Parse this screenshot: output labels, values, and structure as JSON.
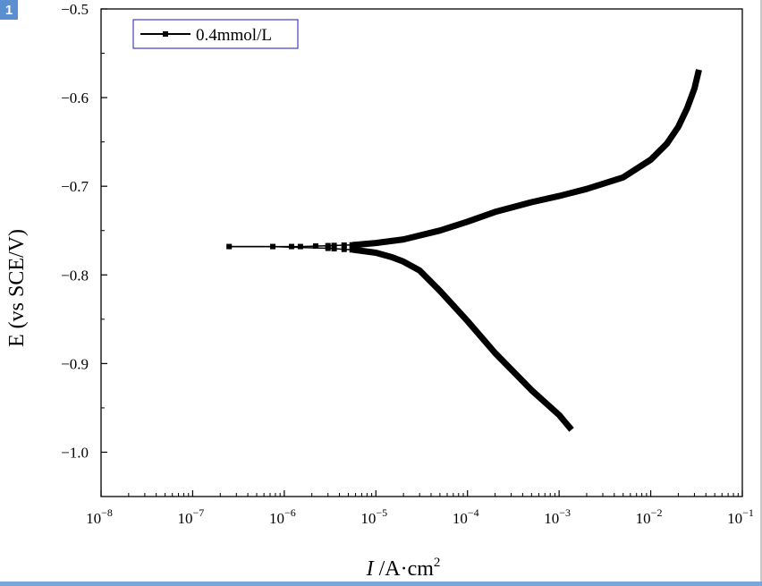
{
  "figure": {
    "badge": "1"
  },
  "chart_data": {
    "type": "line",
    "xlabel": {
      "italic": "I",
      "unit": " /A·cm",
      "sup": "2"
    },
    "ylabel": "E (vs SCE/V)",
    "xscale": "log",
    "xlim": [
      1e-08,
      0.1
    ],
    "ylim": [
      -1.05,
      -0.5
    ],
    "x_tick_labels": [
      {
        "base": "10",
        "exp": "−8"
      },
      {
        "base": "10",
        "exp": "−7"
      },
      {
        "base": "10",
        "exp": "−6"
      },
      {
        "base": "10",
        "exp": "−5"
      },
      {
        "base": "10",
        "exp": "−4"
      },
      {
        "base": "10",
        "exp": "−3"
      },
      {
        "base": "10",
        "exp": "−2"
      },
      {
        "base": "10",
        "exp": "−1"
      }
    ],
    "y_ticks": [
      -0.5,
      -0.6,
      -0.7,
      -0.8,
      -0.9,
      -1.0
    ],
    "y_tick_labels": [
      "−0.5",
      "−0.6",
      "−0.7",
      "−0.8",
      "−0.9",
      "−1.0"
    ],
    "legend": {
      "position": "top-left",
      "entries": [
        "0.4mmol/L"
      ]
    },
    "series": [
      {
        "name": "0.4mmol/L",
        "color": "#000000",
        "marker": "square",
        "anodic_branch": {
          "x": [
            2.5e-07,
            7.5e-07,
            1.5e-06,
            3e-06,
            6e-06,
            1e-05,
            2e-05,
            5e-05,
            0.0001,
            0.0002,
            0.0005,
            0.001,
            0.002,
            0.005,
            0.01,
            0.015,
            0.02,
            0.025,
            0.03,
            0.033
          ],
          "y": [
            -0.768,
            -0.768,
            -0.768,
            -0.767,
            -0.766,
            -0.764,
            -0.76,
            -0.75,
            -0.74,
            -0.729,
            -0.718,
            -0.711,
            -0.703,
            -0.69,
            -0.67,
            -0.652,
            -0.633,
            -0.612,
            -0.59,
            -0.572
          ]
        },
        "cathodic_branch": {
          "x": [
            2.5e-07,
            7.5e-07,
            1.5e-06,
            3e-06,
            6e-06,
            1e-05,
            1.5e-05,
            2e-05,
            3e-05,
            5e-05,
            0.0001,
            0.0002,
            0.0005,
            0.001,
            0.0013
          ],
          "y": [
            -0.768,
            -0.768,
            -0.769,
            -0.77,
            -0.772,
            -0.775,
            -0.78,
            -0.785,
            -0.795,
            -0.818,
            -0.852,
            -0.888,
            -0.93,
            -0.958,
            -0.972
          ]
        },
        "sparse_marker_x": [
          2.5e-07,
          7.5e-07,
          1.2e-06,
          1.5e-06,
          2.2e-06,
          3e-06,
          3.5e-06,
          4.5e-06,
          5.5e-06,
          6.5e-06,
          7e-06
        ]
      }
    ]
  }
}
